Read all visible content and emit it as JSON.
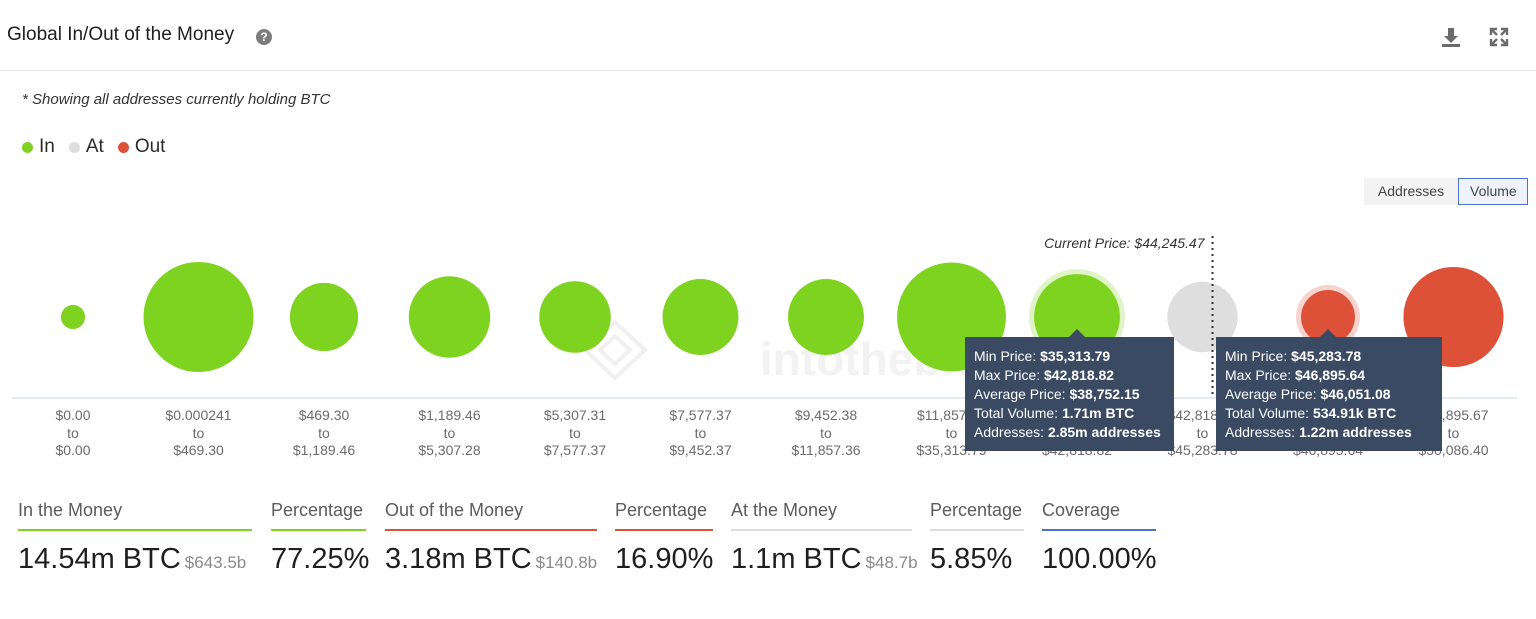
{
  "header": {
    "title": "Global In/Out of the Money",
    "help_glyph": "?",
    "icons": [
      "download-icon",
      "fullscreen-icon"
    ]
  },
  "subtitle": "* Showing all addresses currently holding BTC",
  "legend": [
    {
      "label": "In",
      "color": "#7ed321"
    },
    {
      "label": "At",
      "color": "#dedede"
    },
    {
      "label": "Out",
      "color": "#dc5138"
    }
  ],
  "toggle": {
    "addresses_label": "Addresses",
    "volume_label": "Volume",
    "active": "Volume"
  },
  "chart_data": {
    "type": "bubble",
    "current_price_label": "Current Price: $44,245.47",
    "current_price": 44245.47,
    "watermark": "intotheblock",
    "buckets": [
      {
        "from": "$0.00",
        "to": "$0.00",
        "status": "in",
        "size": 0.22
      },
      {
        "from": "$0.000241",
        "to": "$469.30",
        "status": "in",
        "size": 1.0
      },
      {
        "from": "$469.30",
        "to": "$1,189.46",
        "status": "in",
        "size": 0.62
      },
      {
        "from": "$1,189.46",
        "to": "$5,307.28",
        "status": "in",
        "size": 0.74
      },
      {
        "from": "$5,307.31",
        "to": "$7,577.37",
        "status": "in",
        "size": 0.65
      },
      {
        "from": "$7,577.37",
        "to": "$9,452.37",
        "status": "in",
        "size": 0.69
      },
      {
        "from": "$9,452.38",
        "to": "$11,857.36",
        "status": "in",
        "size": 0.69
      },
      {
        "from": "$11,857.36",
        "to": "$35,313.79",
        "status": "in",
        "size": 0.99
      },
      {
        "from": "$35,313.79",
        "to": "$42,818.82",
        "status": "in",
        "size": 0.78,
        "highlight": true
      },
      {
        "from": "$42,818.82",
        "to": "$45,283.78",
        "status": "at",
        "size": 0.64
      },
      {
        "from": "$45,283.78",
        "to": "$46,895.64",
        "status": "out",
        "size": 0.49,
        "highlight": true
      },
      {
        "from": "$46,895.67",
        "to": "$50,086.40",
        "status": "out",
        "size": 0.91
      }
    ],
    "tooltips": [
      {
        "bucket": 8,
        "lines": [
          {
            "label": "Min Price:",
            "value": "$35,313.79"
          },
          {
            "label": "Max Price:",
            "value": "$42,818.82"
          },
          {
            "label": "Average Price:",
            "value": "$38,752.15"
          },
          {
            "label": "Total Volume:",
            "value": "1.71m BTC"
          },
          {
            "label": "Addresses:",
            "value": "2.85m addresses"
          }
        ]
      },
      {
        "bucket": 10,
        "lines": [
          {
            "label": "Min Price:",
            "value": "$45,283.78"
          },
          {
            "label": "Max Price:",
            "value": "$46,895.64"
          },
          {
            "label": "Average Price:",
            "value": "$46,051.08"
          },
          {
            "label": "Total Volume:",
            "value": "534.91k BTC"
          },
          {
            "label": "Addresses:",
            "value": "1.22m addresses"
          }
        ]
      }
    ]
  },
  "stats": [
    {
      "label": "In the Money",
      "value": "14.54m BTC",
      "sub": "$643.5b",
      "color": "#7ed321"
    },
    {
      "label": "Percentage",
      "value": "77.25%",
      "sub": "",
      "color": "#7ed321"
    },
    {
      "label": "Out of the Money",
      "value": "3.18m BTC",
      "sub": "$140.8b",
      "color": "#dc5138"
    },
    {
      "label": "Percentage",
      "value": "16.90%",
      "sub": "",
      "color": "#dc5138"
    },
    {
      "label": "At the Money",
      "value": "1.1m BTC",
      "sub": "$48.7b",
      "color": "#dcdcdc"
    },
    {
      "label": "Percentage",
      "value": "5.85%",
      "sub": "",
      "color": "#dcdcdc"
    },
    {
      "label": "Coverage",
      "value": "100.00%",
      "sub": "",
      "color": "#4a74c9"
    }
  ]
}
